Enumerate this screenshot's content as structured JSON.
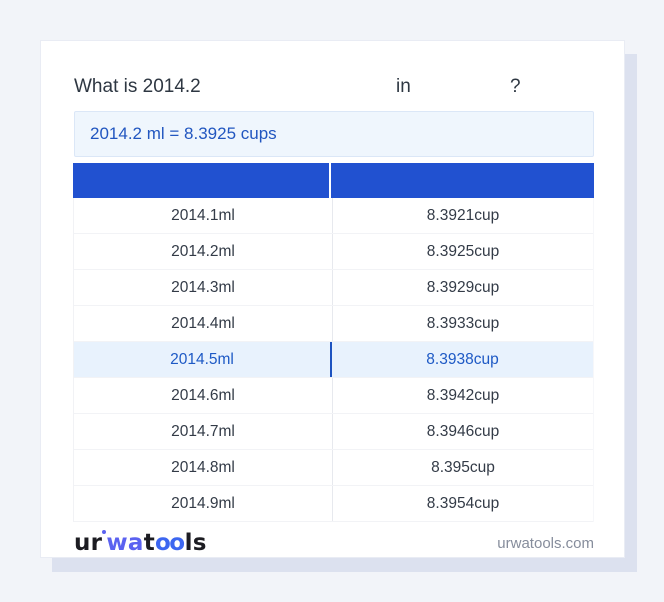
{
  "question": {
    "prefix": "What is 2014.2",
    "connector": "in",
    "suffix": "?"
  },
  "result": {
    "text": "2014.2 ml = 8.3925 cups"
  },
  "table": {
    "header": {
      "left": "",
      "right": ""
    },
    "highlighted_row_index": 4,
    "rows": [
      {
        "ml": "2014.1ml",
        "cup": "8.3921cup"
      },
      {
        "ml": "2014.2ml",
        "cup": "8.3925cup"
      },
      {
        "ml": "2014.3ml",
        "cup": "8.3929cup"
      },
      {
        "ml": "2014.4ml",
        "cup": "8.3933cup"
      },
      {
        "ml": "2014.5ml",
        "cup": "8.3938cup"
      },
      {
        "ml": "2014.6ml",
        "cup": "8.3942cup"
      },
      {
        "ml": "2014.7ml",
        "cup": "8.3946cup"
      },
      {
        "ml": "2014.8ml",
        "cup": "8.395cup"
      },
      {
        "ml": "2014.9ml",
        "cup": "8.3954cup"
      }
    ]
  },
  "footer": {
    "logo": {
      "part_ur": "ur",
      "part_wa": "wa",
      "part_t": "t",
      "part_oo": "oo",
      "part_ls": "ls"
    },
    "website": "urwatools.com"
  },
  "colors": {
    "page_background": "#f2f4f9",
    "header_blue": "#2151d0",
    "result_background": "#eff6fd",
    "result_text": "#2156c0",
    "highlight_background": "#e8f2fd",
    "highlight_text": "#1d59c5",
    "highlight_divider": "#1d53c0",
    "body_text": "#333b47",
    "logo_indigo": "#5b62f0",
    "logo_blue": "#3c66f0",
    "card_shadow": "#dce1ef"
  }
}
